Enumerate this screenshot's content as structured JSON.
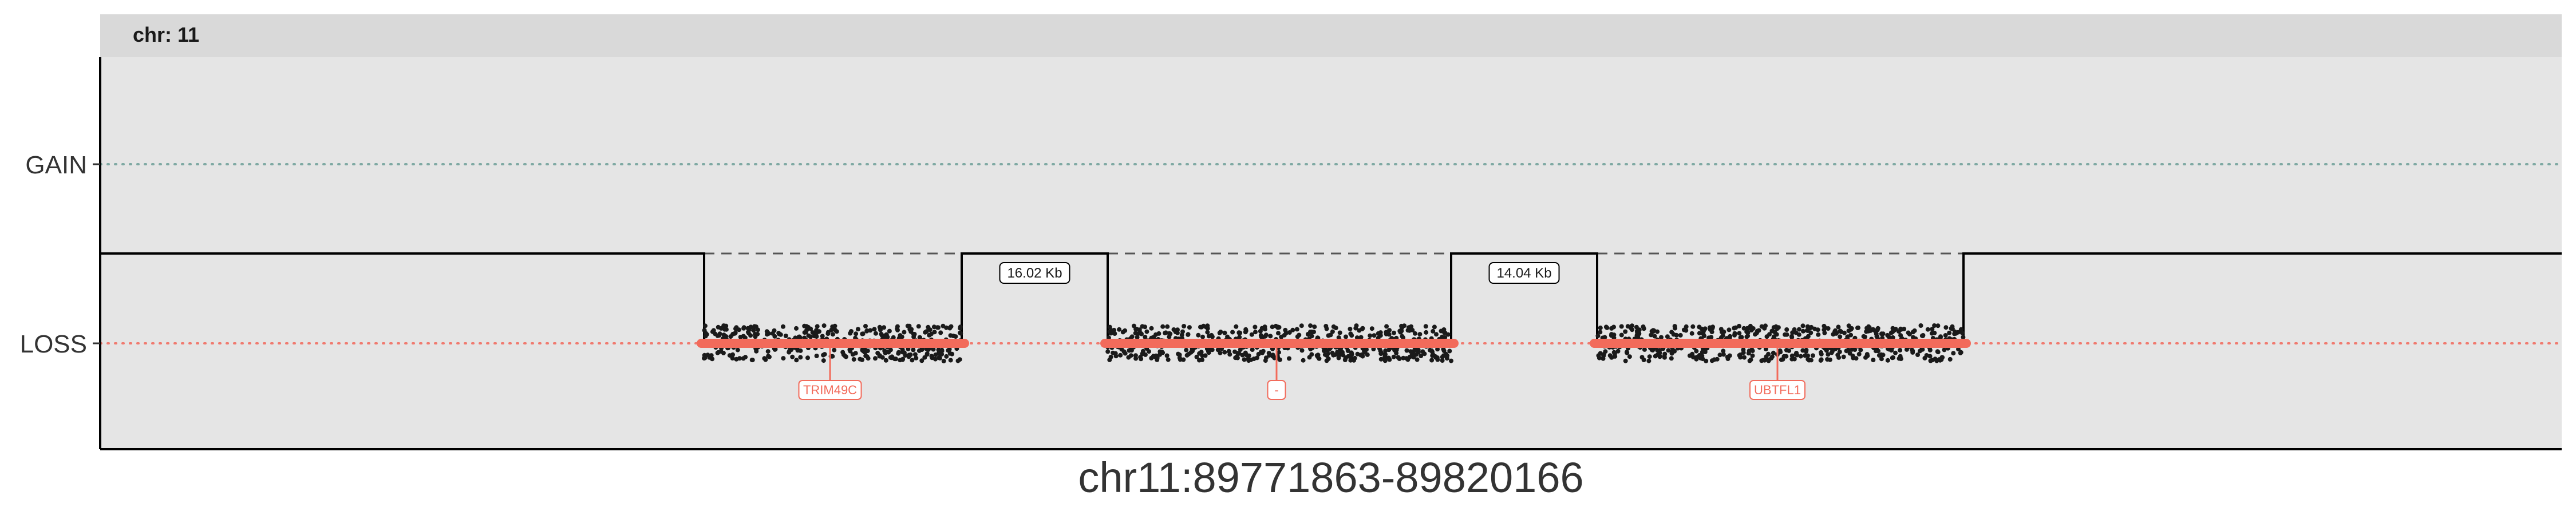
{
  "chart_data": {
    "type": "scatter",
    "facet": "chr: 11",
    "xlabel": "chr11:89771863-89820166",
    "ylabel": "",
    "y_categories": [
      "GAIN",
      "LOSS"
    ],
    "grid": false,
    "background": "#e5e5e5",
    "strip_background": "#d9d9d9",
    "colors": {
      "gain_line": "#7fa9a3",
      "loss_line": "#f07a6f",
      "segment": "#f26b5b",
      "points": "#1a1a1a",
      "gene_label": "#f26b5b"
    },
    "segments": [
      {
        "state": "LOSS",
        "gene": "TRIM49C"
      },
      {
        "state": "LOSS",
        "gene": "-"
      },
      {
        "state": "LOSS",
        "gene": "UBTFL1"
      }
    ],
    "gaps": [
      {
        "label": "16.02 Kb"
      },
      {
        "label": "14.04 Kb"
      }
    ]
  }
}
